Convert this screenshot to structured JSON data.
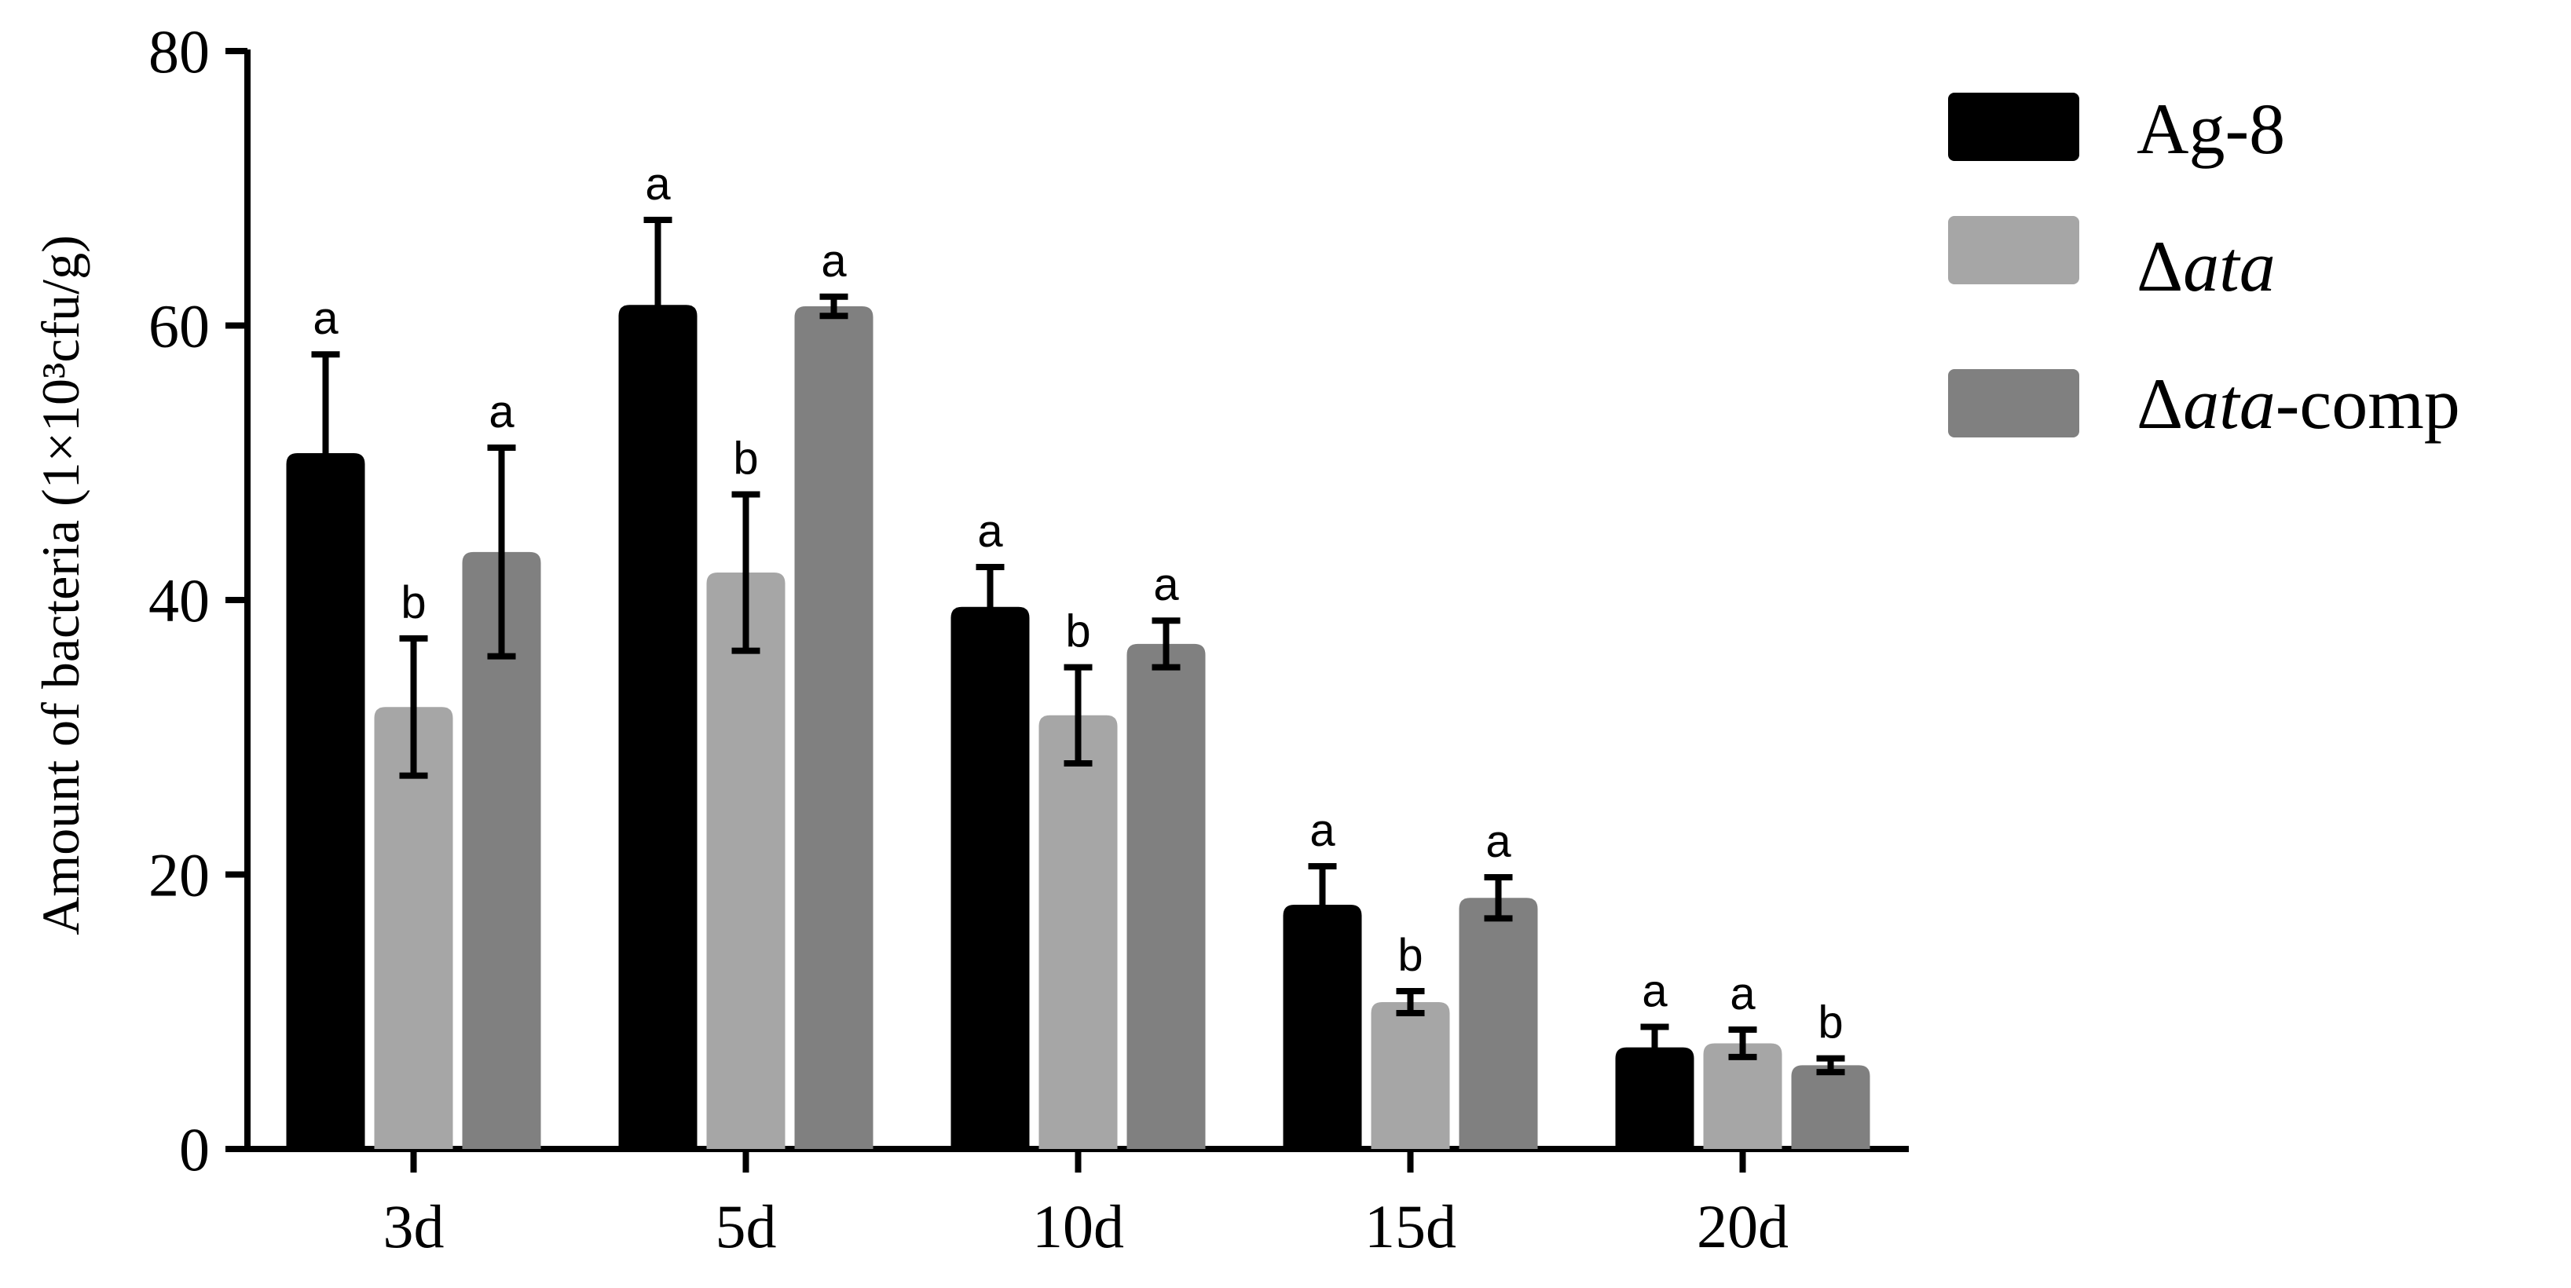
{
  "chart_data": {
    "type": "bar",
    "categories": [
      "3d",
      "5d",
      "10d",
      "15d",
      "20d"
    ],
    "ylabel": "Amount of bacteria (1×10³cfu/g)",
    "ylim": [
      0,
      80
    ],
    "yticks": [
      "0",
      "20",
      "40",
      "60",
      "80"
    ],
    "legend_position": "top-right",
    "series": [
      {
        "name": "Ag-8",
        "color": "#000000",
        "values": [
          50.7,
          61.5,
          39.5,
          17.8,
          7.4
        ],
        "errors": [
          7.2,
          6.2,
          2.9,
          2.8,
          1.5
        ],
        "labels": [
          "a",
          "a",
          "a",
          "a",
          "a"
        ]
      },
      {
        "name": "Δata",
        "color": "#a6a6a6",
        "values": [
          32.2,
          42.0,
          31.6,
          10.7,
          7.7
        ],
        "errors": [
          5.0,
          5.7,
          3.5,
          0.8,
          1.0
        ],
        "labels": [
          "b",
          "b",
          "b",
          "b",
          "a"
        ]
      },
      {
        "name": "Δata-comp",
        "color": "#808080",
        "values": [
          43.5,
          61.4,
          36.8,
          18.3,
          6.1
        ],
        "errors": [
          7.6,
          0.7,
          1.7,
          1.5,
          0.5
        ],
        "labels": [
          "a",
          "a",
          "a",
          "a",
          "b"
        ]
      }
    ]
  },
  "legend": [
    {
      "italic": "",
      "plain": "Ag-8"
    },
    {
      "italic": "ata",
      "plain": ""
    },
    {
      "italic": "ata",
      "plain": "-comp"
    }
  ]
}
